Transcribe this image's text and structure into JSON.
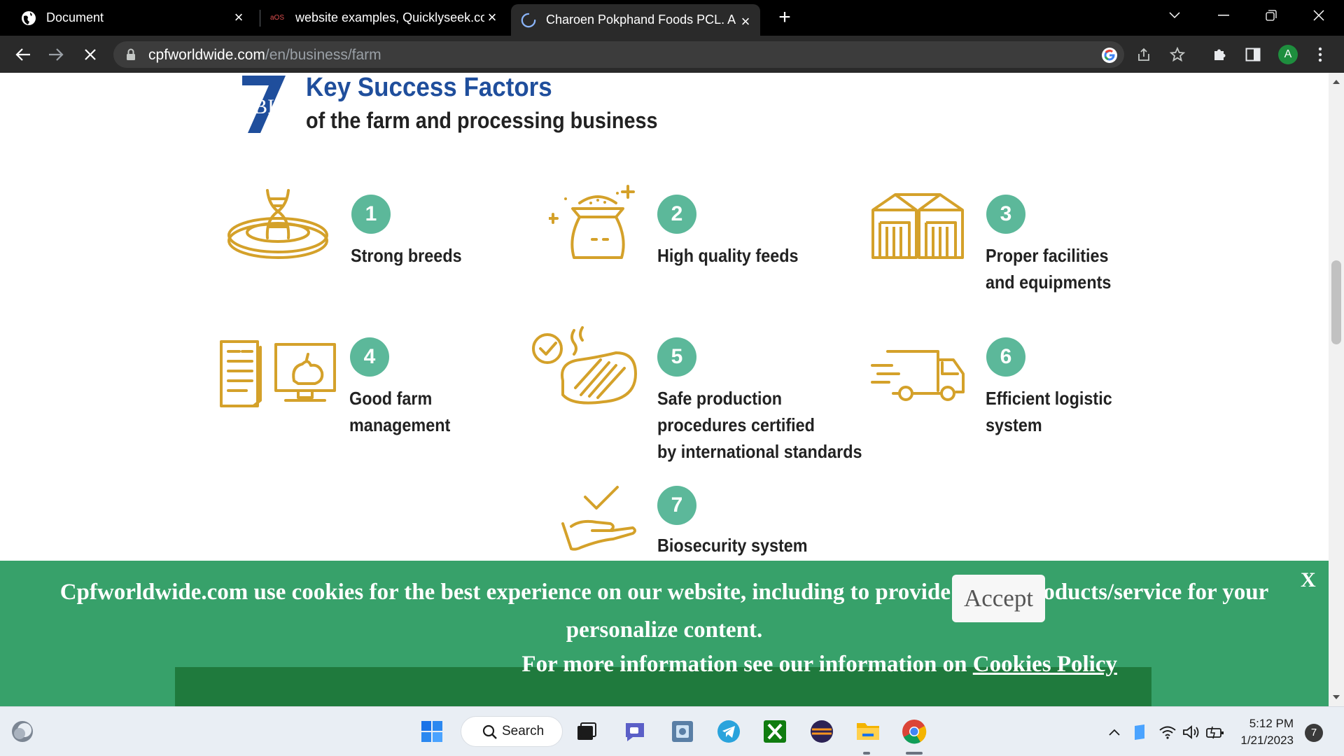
{
  "browser": {
    "tabs": [
      {
        "title": "Document"
      },
      {
        "title": "website examples, Quicklyseek.co"
      },
      {
        "title": "Charoen Pokphand Foods PCL. A"
      }
    ],
    "url_host": "cpfworldwide.com",
    "url_path": "/en/business/farm",
    "profile_initial": "A"
  },
  "page": {
    "heading_number": "7",
    "heading_title": "Key Success Factors",
    "heading_subtitle": "of the farm and processing business",
    "factors": [
      {
        "number": "1",
        "label": "Strong breeds",
        "icon": "dna-icon"
      },
      {
        "number": "2",
        "label": "High quality feeds",
        "icon": "feed-sack-icon"
      },
      {
        "number": "3",
        "label": "Proper facilities\nand equipments",
        "icon": "warehouse-icon"
      },
      {
        "number": "4",
        "label": "Good farm\nmanagement",
        "icon": "farm-management-icon"
      },
      {
        "number": "5",
        "label": "Safe production\nprocedures certified\nby international standards",
        "icon": "meat-certified-icon"
      },
      {
        "number": "6",
        "label": "Efficient logistic\nsystem",
        "icon": "truck-icon"
      },
      {
        "number": "7",
        "label": "Biosecurity system\nthroughout supply chain",
        "icon": "hand-check-icon"
      }
    ]
  },
  "cookie_banner": {
    "message": "Cpfworldwide.com use cookies for the best experience on our website, including to provide ads of products/service for your personalize content.",
    "info_prefix": "For more information see our information on",
    "policy_link": "Cookies Policy",
    "accept_label": "Accept",
    "close_label": "X"
  },
  "taskbar": {
    "search_label": "Search",
    "time": "5:12 PM",
    "date": "1/21/2023",
    "notification_count": "7"
  },
  "colors": {
    "accent_gold": "#d4a12a",
    "number_badge": "#5cb89a",
    "heading_blue": "#1f4e9c",
    "cookie_green": "#37a16a"
  }
}
